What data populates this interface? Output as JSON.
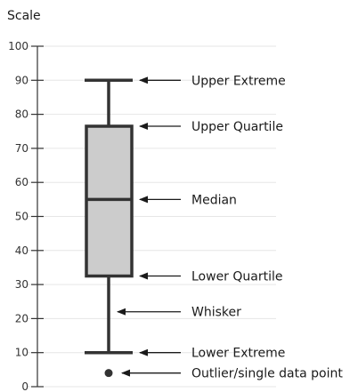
{
  "scale_label": "Scale",
  "axis": {
    "min": 0,
    "max": 100,
    "ticks": [
      "0",
      "10",
      "20",
      "30",
      "40",
      "50",
      "60",
      "70",
      "80",
      "90",
      "100"
    ]
  },
  "boxplot": {
    "upper_extreme": 90,
    "upper_quartile": 76.5,
    "median": 55,
    "lower_quartile": 32.5,
    "lower_extreme": 10,
    "outlier": 4
  },
  "annotations": [
    {
      "label": "Upper Extreme",
      "value": 90
    },
    {
      "label": "Upper Quartile",
      "value": 76.5
    },
    {
      "label": "Median",
      "value": 55
    },
    {
      "label": "Lower Quartile",
      "value": 32.5
    },
    {
      "label": "Whisker",
      "value": 22
    },
    {
      "label": "Lower Extreme",
      "value": 10
    },
    {
      "label": "Outlier/single data point",
      "value": 4
    }
  ],
  "colors": {
    "box_fill": "#cccccc",
    "stroke": "#333333",
    "grid": "#e6e6e6",
    "text": "#1a1a1a"
  }
}
